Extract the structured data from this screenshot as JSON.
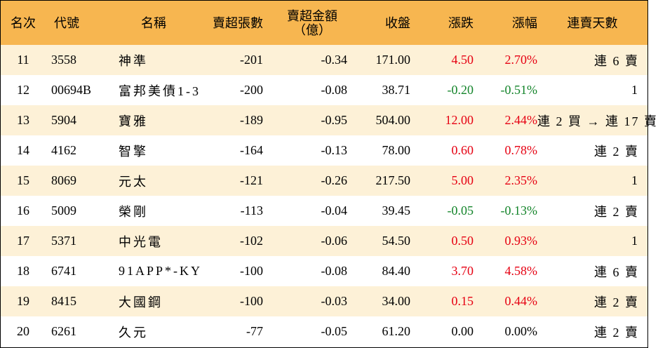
{
  "colors": {
    "header_bg": "#f7b650",
    "stripe_bg": "#fdf1d7",
    "up": "#e60012",
    "down": "#13842a"
  },
  "headers": {
    "rank": "名次",
    "code": "代號",
    "name": "名稱",
    "lots": "賣超張數",
    "amount_line1": "賣超金額",
    "amount_line2": "（億）",
    "close": "收盤",
    "change": "漲跌",
    "pct": "漲幅",
    "days": "連賣天數"
  },
  "rows": [
    {
      "rank": "11",
      "code": "3558",
      "name": "神準",
      "lots": "-201",
      "amount": "-0.34",
      "close": "171.00",
      "change": "4.50",
      "pct": "2.70%",
      "dir": "pos",
      "days": "連 6 賣"
    },
    {
      "rank": "12",
      "code": "00694B",
      "name": "富邦美債1-3",
      "lots": "-200",
      "amount": "-0.08",
      "close": "38.71",
      "change": "-0.20",
      "pct": "-0.51%",
      "dir": "neg",
      "days": "1"
    },
    {
      "rank": "13",
      "code": "5904",
      "name": "寶雅",
      "lots": "-189",
      "amount": "-0.95",
      "close": "504.00",
      "change": "12.00",
      "pct": "2.44%",
      "dir": "pos",
      "days": "連 2 買 → 連 17 賣"
    },
    {
      "rank": "14",
      "code": "4162",
      "name": "智擎",
      "lots": "-164",
      "amount": "-0.13",
      "close": "78.00",
      "change": "0.60",
      "pct": "0.78%",
      "dir": "pos",
      "days": "連 2 賣"
    },
    {
      "rank": "15",
      "code": "8069",
      "name": "元太",
      "lots": "-121",
      "amount": "-0.26",
      "close": "217.50",
      "change": "5.00",
      "pct": "2.35%",
      "dir": "pos",
      "days": "1"
    },
    {
      "rank": "16",
      "code": "5009",
      "name": "榮剛",
      "lots": "-113",
      "amount": "-0.04",
      "close": "39.45",
      "change": "-0.05",
      "pct": "-0.13%",
      "dir": "neg",
      "days": "連 2 賣"
    },
    {
      "rank": "17",
      "code": "5371",
      "name": "中光電",
      "lots": "-102",
      "amount": "-0.06",
      "close": "54.50",
      "change": "0.50",
      "pct": "0.93%",
      "dir": "pos",
      "days": "1"
    },
    {
      "rank": "18",
      "code": "6741",
      "name": "91APP*-KY",
      "lots": "-100",
      "amount": "-0.08",
      "close": "84.40",
      "change": "3.70",
      "pct": "4.58%",
      "dir": "pos",
      "days": "連 6 賣"
    },
    {
      "rank": "19",
      "code": "8415",
      "name": "大國鋼",
      "lots": "-100",
      "amount": "-0.03",
      "close": "34.00",
      "change": "0.15",
      "pct": "0.44%",
      "dir": "pos",
      "days": "連 2 賣"
    },
    {
      "rank": "20",
      "code": "6261",
      "name": "久元",
      "lots": "-77",
      "amount": "-0.05",
      "close": "61.20",
      "change": "0.00",
      "pct": "0.00%",
      "dir": "flat",
      "days": "連 2 賣"
    }
  ]
}
